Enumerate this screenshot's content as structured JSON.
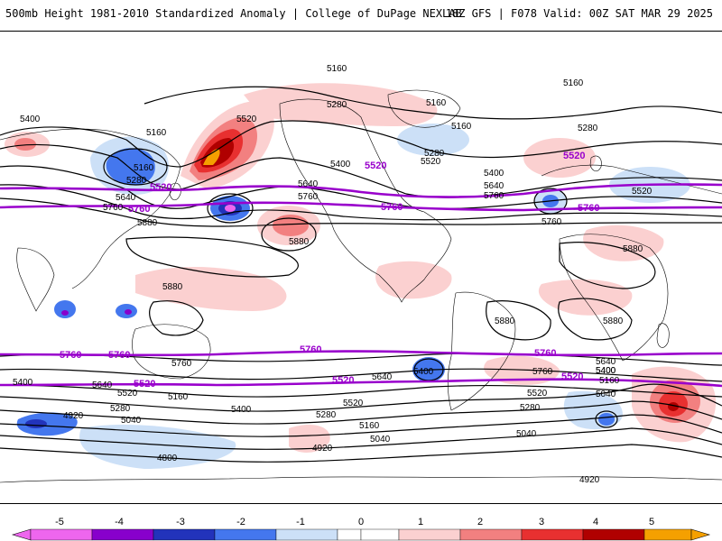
{
  "header": {
    "left_title": "500mb Height 1981-2010 Standardized Anomaly | College of DuPage NEXLAB",
    "right_title": "18Z GFS | F078 Valid: 00Z SAT MAR 29 2025"
  },
  "colors": {
    "contour": "#000000",
    "highlight_contour": "#9900cc",
    "land_outline": "#000000",
    "neg5": "#ee66ee",
    "neg4": "#8800cc",
    "neg3": "#2233bb",
    "neg2": "#4477ee",
    "neg1": "#cce0f7",
    "pos1": "#fbd0d0",
    "pos2": "#f28080",
    "pos3": "#e83030",
    "pos4": "#b00000",
    "pos5": "#f5a000"
  },
  "contour_labels": {
    "black": [
      {
        "text": "5160"
      },
      {
        "text": "5160"
      },
      {
        "text": "5400"
      },
      {
        "text": "5160"
      },
      {
        "text": "5520"
      },
      {
        "text": "5280"
      },
      {
        "text": "5160"
      },
      {
        "text": "5160"
      },
      {
        "text": "5280"
      },
      {
        "text": "5160"
      },
      {
        "text": "5280"
      },
      {
        "text": "5400"
      },
      {
        "text": "5520"
      },
      {
        "text": "5280"
      },
      {
        "text": "5400"
      },
      {
        "text": "5640"
      },
      {
        "text": "5760"
      },
      {
        "text": "5640"
      },
      {
        "text": "5760"
      },
      {
        "text": "5520"
      },
      {
        "text": "5640"
      },
      {
        "text": "5760"
      },
      {
        "text": "5880"
      },
      {
        "text": "5880"
      },
      {
        "text": "5880"
      },
      {
        "text": "5760"
      },
      {
        "text": "5880"
      },
      {
        "text": "5880"
      },
      {
        "text": "5880"
      },
      {
        "text": "5400"
      },
      {
        "text": "5640"
      },
      {
        "text": "5520"
      },
      {
        "text": "5280"
      },
      {
        "text": "5040"
      },
      {
        "text": "4920"
      },
      {
        "text": "5160"
      },
      {
        "text": "5400"
      },
      {
        "text": "5760"
      },
      {
        "text": "5280"
      },
      {
        "text": "5520"
      },
      {
        "text": "5640"
      },
      {
        "text": "5400"
      },
      {
        "text": "5520"
      },
      {
        "text": "5280"
      },
      {
        "text": "5160"
      },
      {
        "text": "5040"
      },
      {
        "text": "4920"
      },
      {
        "text": "5040"
      },
      {
        "text": "5400"
      },
      {
        "text": "5760"
      },
      {
        "text": "5640"
      },
      {
        "text": "5400"
      },
      {
        "text": "5160"
      },
      {
        "text": "5040"
      },
      {
        "text": "4800"
      },
      {
        "text": "4920"
      }
    ],
    "highlight": [
      {
        "text": "5520"
      },
      {
        "text": "5760"
      },
      {
        "text": "5520"
      },
      {
        "text": "5760"
      },
      {
        "text": "5520"
      },
      {
        "text": "5760"
      },
      {
        "text": "5760"
      },
      {
        "text": "5520"
      },
      {
        "text": "5760"
      },
      {
        "text": "5520"
      },
      {
        "text": "5760"
      },
      {
        "text": "5520"
      },
      {
        "text": "5760"
      },
      {
        "text": "5520"
      }
    ]
  },
  "colorbar": {
    "ticks": [
      "-5",
      "-4",
      "-3",
      "-2",
      "-1",
      "0",
      "1",
      "2",
      "3",
      "4",
      "5"
    ]
  }
}
